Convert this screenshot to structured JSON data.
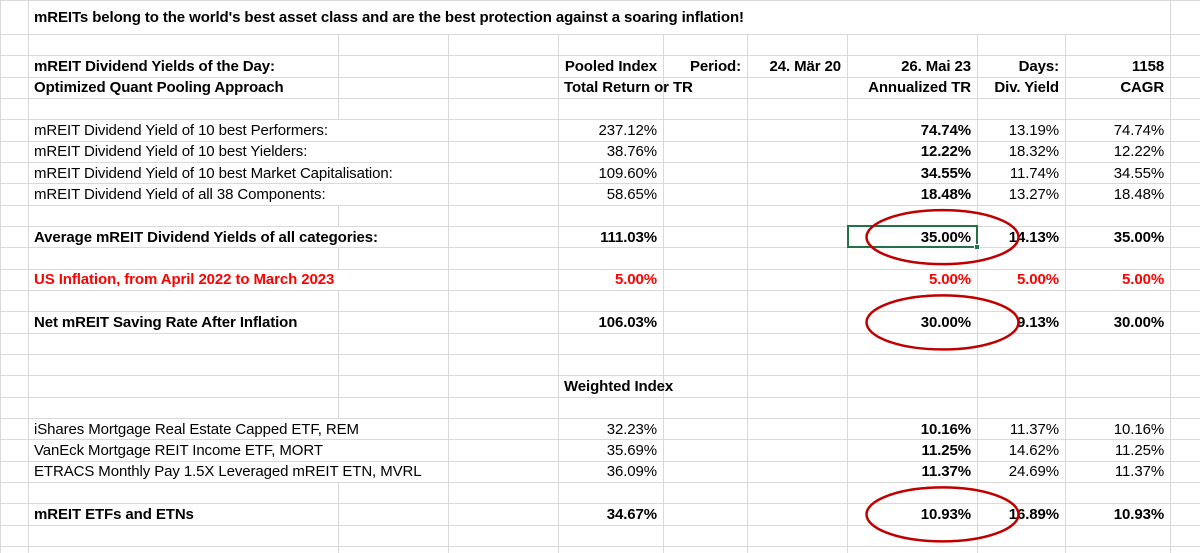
{
  "title": "mREITs belong to the world's best asset class and are the best protection against a soaring inflation!",
  "colors": {
    "selection_green": "#217346",
    "circle_red": "#c00000",
    "alert_red": "#ff0000",
    "gridline_gray": "#d9d9d9"
  },
  "sheet": {
    "rows": [
      {
        "type": "empty"
      },
      {
        "type": "header",
        "label": "mREIT Dividend Yields of the Day:",
        "E": "Pooled Index",
        "F": "Period:",
        "G": "24. Mär 20",
        "H": "26. Mai 23",
        "I": "Days:",
        "J": "1158"
      },
      {
        "type": "header",
        "label": "Optimized Quant Pooling Approach",
        "E": "Total Return or TR",
        "H": "Annualized TR",
        "I": "Div. Yield",
        "J": "CAGR"
      },
      {
        "type": "empty"
      },
      {
        "type": "data",
        "label": "mREIT Dividend Yield of 10 best Performers:",
        "E": "237.12%",
        "H": "74.74%",
        "I": "13.19%",
        "J": "74.74%"
      },
      {
        "type": "data",
        "label": "mREIT Dividend Yield of 10 best Yielders:",
        "E": "38.76%",
        "H": "12.22%",
        "I": "18.32%",
        "J": "12.22%"
      },
      {
        "type": "data",
        "label": "mREIT Dividend Yield of 10 best Market Capitalisation:",
        "E": "109.60%",
        "H": "34.55%",
        "I": "11.74%",
        "J": "34.55%"
      },
      {
        "type": "data",
        "label": "mREIT Dividend Yield of all 38 Components:",
        "E": "58.65%",
        "H": "18.48%",
        "I": "13.27%",
        "J": "18.48%"
      },
      {
        "type": "empty"
      },
      {
        "type": "total",
        "label": "Average mREIT Dividend Yields of all categories:",
        "E": "111.03%",
        "H": "35.00%",
        "I": "14.13%",
        "J": "35.00%"
      },
      {
        "type": "empty"
      },
      {
        "type": "inflation",
        "label": "US Inflation, from April 2022 to March 2023",
        "E": "5.00%",
        "H": "5.00%",
        "I": "5.00%",
        "J": "5.00%"
      },
      {
        "type": "empty"
      },
      {
        "type": "total",
        "label": "Net mREIT Saving Rate After Inflation",
        "E": "106.03%",
        "H": "30.00%",
        "I": "9.13%",
        "J": "30.00%"
      },
      {
        "type": "empty"
      },
      {
        "type": "empty"
      },
      {
        "type": "weighted",
        "E": "Weighted Index"
      },
      {
        "type": "empty"
      },
      {
        "type": "data",
        "label": "iShares Mortgage Real Estate Capped ETF, REM",
        "E": "32.23%",
        "H": "10.16%",
        "I": "11.37%",
        "J": "10.16%"
      },
      {
        "type": "data",
        "label": "VanEck Mortgage REIT Income ETF, MORT",
        "E": "35.69%",
        "H": "11.25%",
        "I": "14.62%",
        "J": "11.25%"
      },
      {
        "type": "data",
        "label": "ETRACS Monthly Pay 1.5X Leveraged mREIT ETN, MVRL",
        "E": "36.09%",
        "H": "11.37%",
        "I": "24.69%",
        "J": "11.37%"
      },
      {
        "type": "empty"
      },
      {
        "type": "total",
        "label": "mREIT ETFs and ETNs",
        "E": "34.67%",
        "H": "10.93%",
        "I": "16.89%",
        "J": "10.93%"
      },
      {
        "type": "empty"
      },
      {
        "type": "empty"
      }
    ]
  },
  "annotations": {
    "selected_cell": "H11",
    "circled_cells": [
      "H11",
      "H15",
      "H24"
    ]
  }
}
